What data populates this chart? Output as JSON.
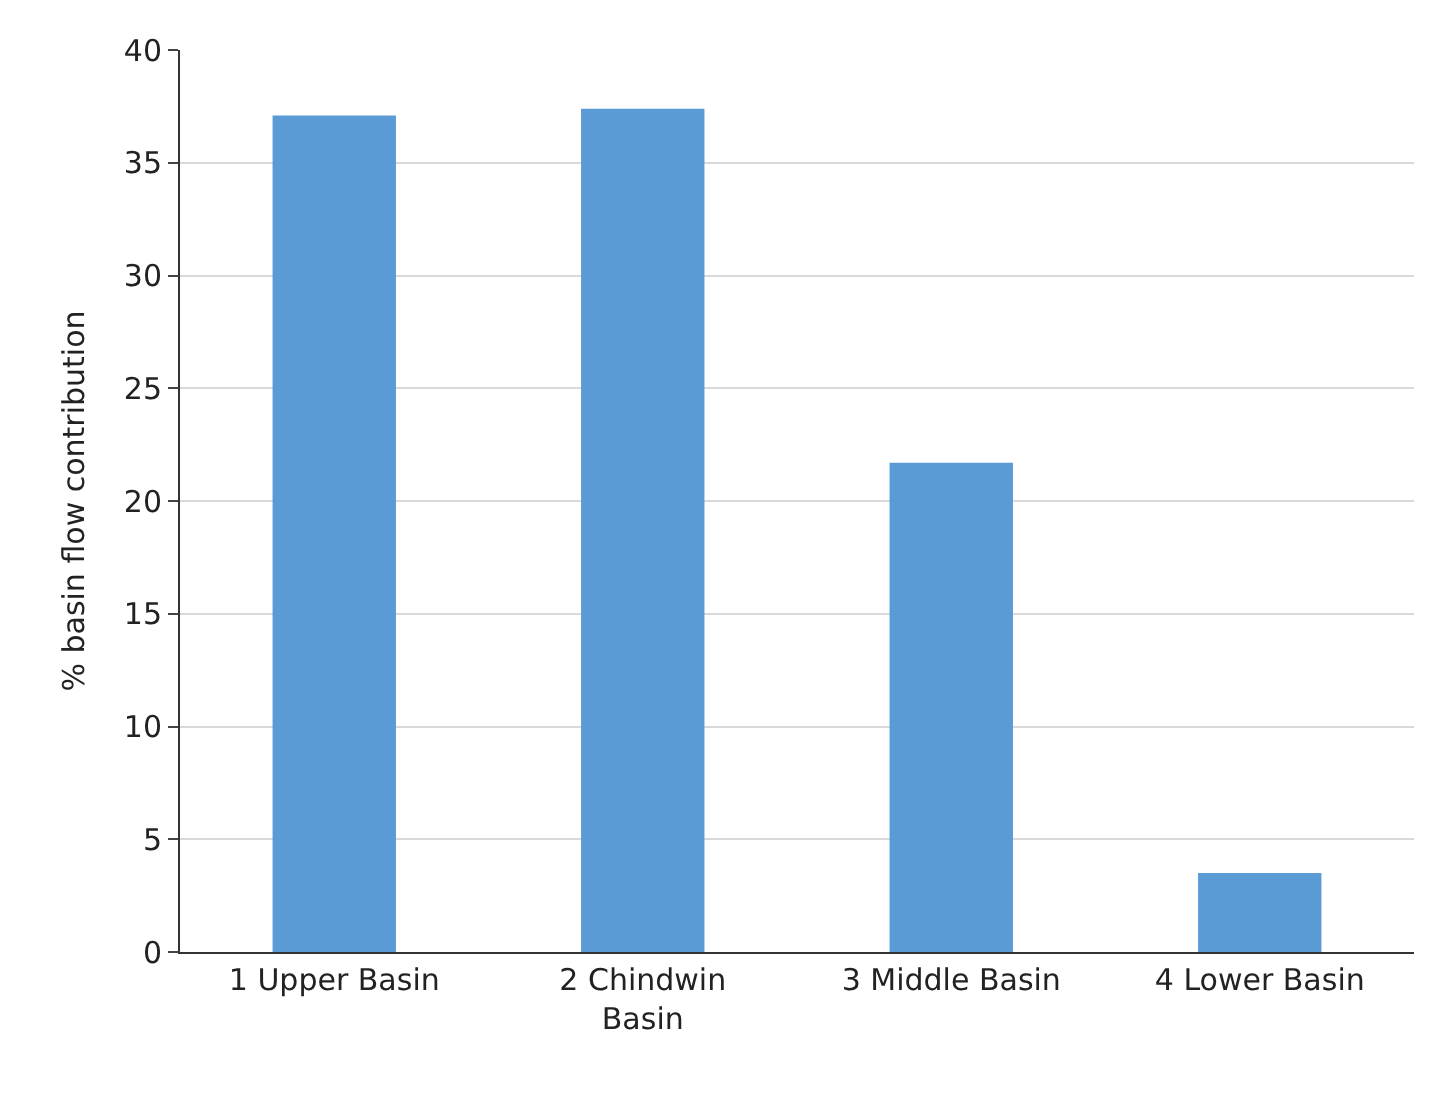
{
  "chart_data": {
    "type": "bar",
    "ylabel": "% basin flow contribution",
    "categories": [
      "1 Upper Basin",
      "2 Chindwin\nBasin",
      "3 Middle Basin",
      "4 Lower Basin"
    ],
    "values": [
      37.1,
      37.4,
      21.7,
      3.5
    ],
    "color": "#5b9bd5",
    "ylim": [
      0,
      40
    ],
    "yticks": [
      0,
      5,
      10,
      15,
      20,
      25,
      30,
      35,
      40
    ],
    "grid": "y"
  }
}
